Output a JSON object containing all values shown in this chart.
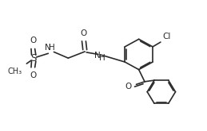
{
  "bg_color": "#ffffff",
  "line_color": "#2a2a2a",
  "line_width": 1.2,
  "font_size": 7.5,
  "figsize": [
    2.59,
    1.65
  ],
  "dpi": 100,
  "xlim": [
    0,
    10.5
  ],
  "ylim": [
    0,
    7
  ]
}
